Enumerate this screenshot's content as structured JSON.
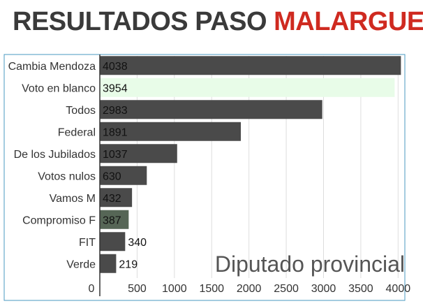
{
  "header": {
    "title_part1": "RESULTADOS PASO ",
    "title_part2": "MALARGUE"
  },
  "colors": {
    "bar_default": "#4a4a4a",
    "bar_highlight": "#e8fce8",
    "bar_compromiso": "#566656",
    "frame": "#4a9ac0",
    "title_accent": "#cf2a20"
  },
  "chart_data": {
    "type": "bar",
    "orientation": "horizontal",
    "categories": [
      "Cambia Mendoza",
      "Voto en blanco",
      "Todos",
      "Federal",
      "De los Jubilados",
      "Votos nulos",
      "Vamos M",
      "Compromiso F",
      "FIT",
      "Verde"
    ],
    "values": [
      4038,
      3954,
      2983,
      1891,
      1037,
      630,
      432,
      387,
      340,
      219
    ],
    "bar_colors": [
      "#4a4a4a",
      "#e8fce8",
      "#4a4a4a",
      "#4a4a4a",
      "#4a4a4a",
      "#4a4a4a",
      "#4a4a4a",
      "#566656",
      "#4a4a4a",
      "#4a4a4a"
    ],
    "xlim": [
      0,
      4100
    ],
    "xticks": [
      0,
      500,
      1000,
      1500,
      2000,
      2500,
      3000,
      3500,
      4000
    ],
    "grid": true,
    "annotation": "Diputado provincial"
  }
}
